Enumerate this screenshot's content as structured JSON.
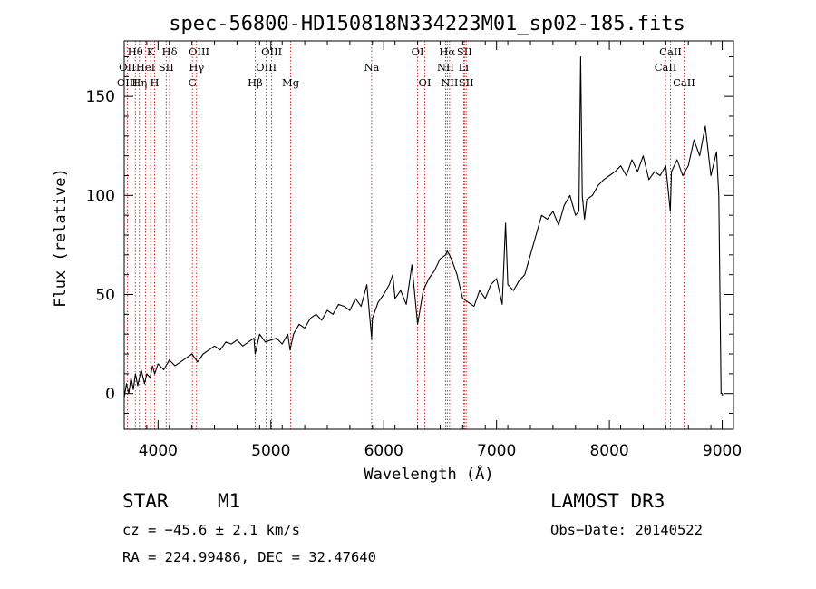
{
  "chart_data": {
    "type": "line",
    "title": "spec-56800-HD150818N334223M01_sp02-185.fits",
    "xlabel": "Wavelength (Å)",
    "ylabel": "Flux (relative)",
    "xlim": [
      3700,
      9100
    ],
    "ylim": [
      -18,
      178
    ],
    "x_ticks": [
      4000,
      5000,
      6000,
      7000,
      8000,
      9000
    ],
    "y_ticks": [
      0,
      50,
      100,
      150
    ],
    "grid": false,
    "series": [
      {
        "name": "spectrum",
        "x": [
          3700,
          3720,
          3740,
          3760,
          3780,
          3800,
          3820,
          3850,
          3880,
          3900,
          3930,
          3950,
          3970,
          4000,
          4050,
          4100,
          4150,
          4200,
          4250,
          4300,
          4350,
          4400,
          4450,
          4500,
          4550,
          4600,
          4650,
          4700,
          4750,
          4800,
          4850,
          4860,
          4900,
          4950,
          5000,
          5050,
          5100,
          5150,
          5170,
          5200,
          5250,
          5300,
          5350,
          5400,
          5450,
          5500,
          5550,
          5600,
          5650,
          5700,
          5750,
          5800,
          5850,
          5893,
          5900,
          5950,
          6000,
          6050,
          6080,
          6100,
          6150,
          6200,
          6250,
          6300,
          6350,
          6400,
          6450,
          6500,
          6550,
          6563,
          6600,
          6650,
          6700,
          6750,
          6800,
          6850,
          6900,
          6950,
          7000,
          7050,
          7080,
          7100,
          7150,
          7200,
          7250,
          7300,
          7350,
          7400,
          7450,
          7500,
          7550,
          7600,
          7650,
          7700,
          7730,
          7745,
          7760,
          7780,
          7800,
          7850,
          7900,
          7950,
          8000,
          8050,
          8100,
          8150,
          8200,
          8250,
          8300,
          8350,
          8400,
          8450,
          8500,
          8540,
          8550,
          8600,
          8650,
          8700,
          8750,
          8800,
          8850,
          8900,
          8950,
          8970,
          8990,
          9000,
          9003
        ],
        "y": [
          -2,
          5,
          0,
          8,
          2,
          10,
          4,
          12,
          5,
          10,
          8,
          14,
          10,
          15,
          12,
          17,
          14,
          16,
          18,
          20,
          16,
          20,
          22,
          24,
          22,
          26,
          25,
          27,
          24,
          26,
          28,
          20,
          30,
          26,
          27,
          28,
          25,
          30,
          22,
          30,
          35,
          33,
          38,
          40,
          37,
          42,
          40,
          45,
          44,
          42,
          48,
          44,
          55,
          28,
          38,
          46,
          50,
          55,
          60,
          48,
          52,
          45,
          65,
          35,
          52,
          58,
          62,
          68,
          70,
          72,
          68,
          60,
          48,
          46,
          44,
          52,
          48,
          55,
          58,
          45,
          86,
          55,
          52,
          57,
          60,
          70,
          80,
          90,
          88,
          92,
          85,
          95,
          100,
          90,
          92,
          170,
          100,
          88,
          98,
          100,
          105,
          108,
          110,
          112,
          115,
          110,
          118,
          112,
          120,
          108,
          112,
          110,
          115,
          92,
          112,
          118,
          110,
          115,
          128,
          120,
          135,
          110,
          122,
          100,
          0,
          0,
          -1
        ]
      }
    ],
    "line_markers": [
      {
        "label": "Hθ",
        "wavelength": 3798,
        "row": 1
      },
      {
        "label": "OII",
        "wavelength": 3727,
        "row": 2
      },
      {
        "label": "OIII",
        "wavelength": 3727,
        "row": 3
      },
      {
        "label": "K",
        "wavelength": 3934,
        "row": 1
      },
      {
        "label": "HeI",
        "wavelength": 3889,
        "row": 2
      },
      {
        "label": "Hη",
        "wavelength": 3835,
        "row": 3
      },
      {
        "label": "H",
        "wavelength": 3969,
        "row": 3
      },
      {
        "label": "SII",
        "wavelength": 4072,
        "row": 2
      },
      {
        "label": "Hδ",
        "wavelength": 4102,
        "row": 1
      },
      {
        "label": "OIII",
        "wavelength": 4363,
        "row": 1
      },
      {
        "label": "Hγ",
        "wavelength": 4341,
        "row": 2
      },
      {
        "label": "G",
        "wavelength": 4304,
        "row": 3
      },
      {
        "label": "Hβ",
        "wavelength": 4861,
        "row": 3
      },
      {
        "label": "OIII",
        "wavelength": 5007,
        "row": 1
      },
      {
        "label": "OIII",
        "wavelength": 4959,
        "row": 2
      },
      {
        "label": "Mg",
        "wavelength": 5175,
        "row": 3
      },
      {
        "label": "Na",
        "wavelength": 5893,
        "row": 2
      },
      {
        "label": "OI",
        "wavelength": 6300,
        "row": 1
      },
      {
        "label": "OI",
        "wavelength": 6364,
        "row": 3
      },
      {
        "label": "Hα",
        "wavelength": 6563,
        "row": 1
      },
      {
        "label": "SII",
        "wavelength": 6716,
        "row": 1
      },
      {
        "label": "NII",
        "wavelength": 6548,
        "row": 2
      },
      {
        "label": "Li",
        "wavelength": 6708,
        "row": 2
      },
      {
        "label": "NII",
        "wavelength": 6584,
        "row": 3
      },
      {
        "label": "SII",
        "wavelength": 6731,
        "row": 3
      },
      {
        "label": "CaII",
        "wavelength": 8542,
        "row": 1
      },
      {
        "label": "CaII",
        "wavelength": 8498,
        "row": 2
      },
      {
        "label": "CaII",
        "wavelength": 8662,
        "row": 3
      }
    ]
  },
  "info": {
    "class": "STAR",
    "subclass": "M1",
    "survey": "LAMOST DR3",
    "cz": "cz = −45.6 ± 2.1 km/s",
    "obs_date": "Obs−Date: 20140522",
    "coords": "RA = 224.99486, DEC =  32.47640"
  },
  "colors": {
    "marker": "#c00000",
    "spectrum": "#000000"
  }
}
